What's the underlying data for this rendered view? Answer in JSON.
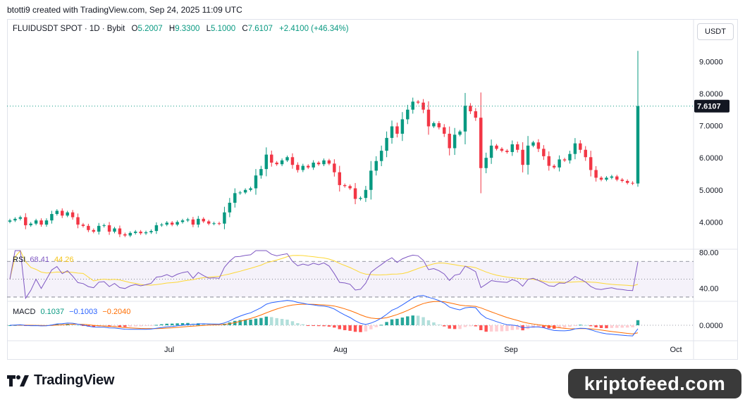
{
  "header": {
    "attribution": "btotti9 created with TradingView.com, Sep 24, 2025 11:09 UTC"
  },
  "legend": {
    "symbol": "FLUIDUSDT SPOT · 1D · Bybit",
    "open_label": "O",
    "open": "5.2007",
    "high_label": "H",
    "high": "9.3300",
    "low_label": "L",
    "low": "5.1000",
    "close_label": "C",
    "close": "7.6107",
    "change": "+2.4100 (+46.34%)"
  },
  "currency_button": "USDT",
  "colors": {
    "up": "#089981",
    "down": "#f23645",
    "rsi": "#7e57c2",
    "rsi_ma": "#fdd835",
    "macd": "#2962ff",
    "signal": "#ff6d00",
    "hist_up_strong": "#26a69a",
    "hist_up_weak": "#b2dfdb",
    "hist_down_strong": "#ff5252",
    "hist_down_weak": "#ffcdd2"
  },
  "rsi_pane": {
    "label": "RSI",
    "value": "68.41",
    "ma_value": "44.26",
    "ticks": [
      "80.00",
      "40.00"
    ]
  },
  "macd_pane": {
    "label": "MACD",
    "hist": "0.1037",
    "macd": "−0.1003",
    "signal": "−0.2040",
    "ticks": [
      "0.0000"
    ]
  },
  "footer": {
    "brand": "TradingView",
    "watermark": "kriptofeed.com"
  },
  "chart_data": {
    "type": "candlestick",
    "price_axis_ticks": [
      "9.0000",
      "8.0000",
      "7.0000",
      "6.0000",
      "5.0000",
      "4.0000"
    ],
    "ylim": [
      3.35,
      9.6
    ],
    "last_price_label": "7.6107",
    "x_ticks": [
      "Jul",
      "Aug",
      "Sep",
      "Oct"
    ],
    "closes": [
      4.05,
      4.1,
      4.15,
      3.9,
      3.95,
      4.05,
      3.92,
      4.05,
      4.25,
      4.35,
      4.2,
      4.3,
      4.15,
      3.92,
      3.88,
      3.75,
      3.7,
      3.88,
      3.9,
      3.7,
      3.8,
      3.62,
      3.58,
      3.66,
      3.7,
      3.65,
      3.68,
      3.72,
      3.9,
      3.92,
      3.98,
      3.92,
      4.0,
      4.05,
      4.08,
      3.92,
      4.1,
      4.02,
      3.95,
      3.96,
      3.95,
      4.3,
      4.6,
      4.9,
      4.92,
      5.0,
      5.05,
      5.45,
      5.65,
      6.1,
      5.85,
      5.8,
      5.92,
      6.02,
      5.78,
      5.62,
      5.75,
      5.7,
      5.85,
      5.8,
      5.92,
      5.82,
      5.55,
      5.15,
      5.12,
      5.05,
      4.72,
      4.75,
      5.0,
      5.6,
      5.9,
      6.22,
      6.62,
      6.98,
      6.75,
      7.2,
      7.5,
      7.75,
      7.72,
      7.5,
      6.98,
      7.08,
      6.95,
      6.75,
      6.3,
      6.72,
      6.82,
      7.62,
      7.45,
      7.25,
      5.68,
      6.0,
      6.38,
      6.28,
      6.22,
      6.18,
      6.42,
      6.25,
      5.78,
      6.38,
      6.48,
      6.28,
      6.05,
      5.75,
      5.7,
      5.95,
      5.92,
      6.12,
      6.45,
      6.25,
      6.02,
      5.62,
      5.38,
      5.32,
      5.38,
      5.42,
      5.32,
      5.28,
      5.22,
      5.2007,
      7.6107
    ]
  }
}
